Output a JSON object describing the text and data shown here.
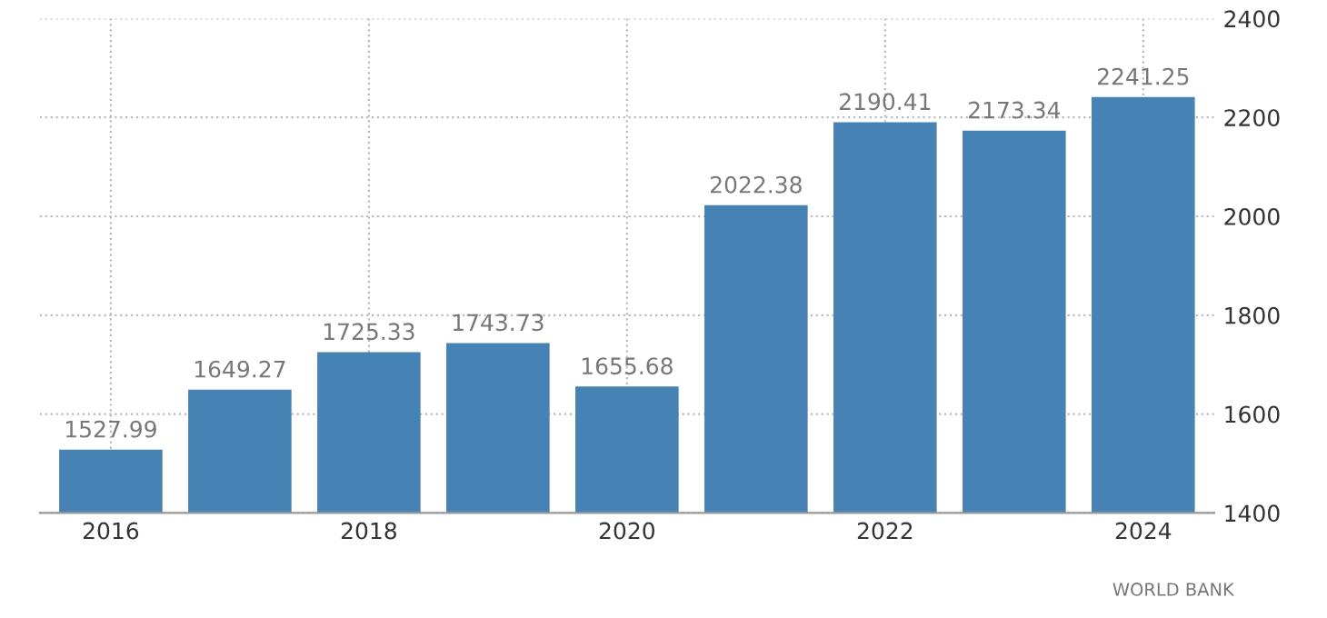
{
  "chart_data": {
    "type": "bar",
    "x": [
      2016,
      2017,
      2018,
      2019,
      2020,
      2021,
      2022,
      2023,
      2024
    ],
    "values": [
      1527.99,
      1649.27,
      1725.33,
      1743.73,
      1655.68,
      2022.38,
      2190.41,
      2173.34,
      2241.25
    ],
    "color": "#4682b4",
    "data_labels": true,
    "xlim": [
      2015.45,
      2024.55
    ],
    "xticks": [
      2016,
      2018,
      2020,
      2022,
      2024
    ],
    "ylim": [
      1400,
      2400
    ],
    "yticks": [
      1400,
      1600,
      1800,
      2000,
      2200,
      2400
    ],
    "grid": true,
    "annotations": [
      "WORLD BANK"
    ]
  }
}
